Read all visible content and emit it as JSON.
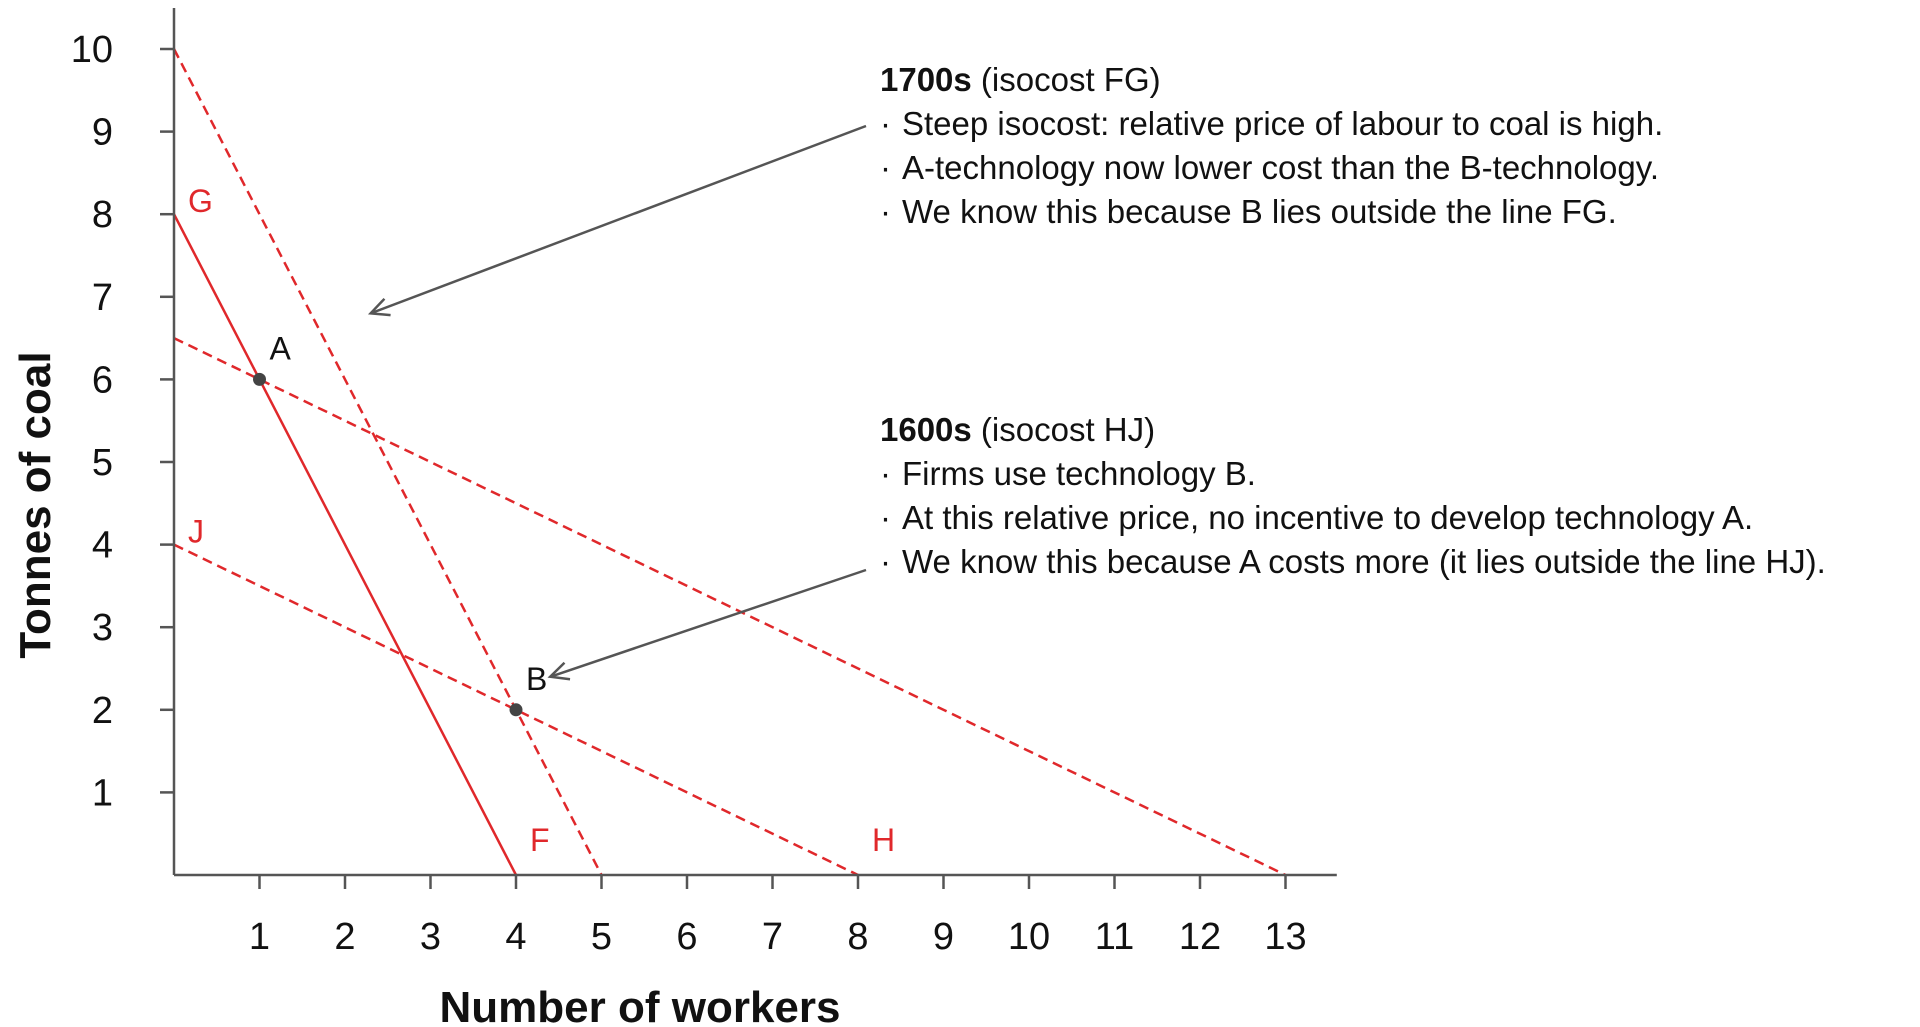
{
  "chart_data": {
    "type": "line",
    "xlabel": "Number of workers",
    "ylabel": "Tonnes of coal",
    "xlim": [
      0,
      13.6
    ],
    "ylim": [
      0,
      10.5
    ],
    "x_ticks": [
      1,
      2,
      3,
      4,
      5,
      6,
      7,
      8,
      9,
      10,
      11,
      12,
      13
    ],
    "y_ticks": [
      1,
      2,
      3,
      4,
      5,
      6,
      7,
      8,
      9,
      10
    ],
    "grid": false,
    "series": [
      {
        "name": "FG",
        "style": "solid",
        "color": "#e0282b",
        "points": [
          [
            0,
            8
          ],
          [
            4,
            0
          ]
        ],
        "end_labels": [
          "G",
          "F"
        ]
      },
      {
        "name": "",
        "style": "dashed",
        "color": "#e0282b",
        "points": [
          [
            0,
            10
          ],
          [
            5,
            0
          ]
        ]
      },
      {
        "name": "HJ",
        "style": "dashed",
        "color": "#e0282b",
        "points": [
          [
            0,
            4
          ],
          [
            8,
            0
          ]
        ],
        "end_labels": [
          "J",
          "H"
        ]
      },
      {
        "name": "",
        "style": "dashed",
        "color": "#e0282b",
        "points": [
          [
            0,
            6.5
          ],
          [
            13,
            0
          ]
        ]
      }
    ],
    "points": [
      {
        "label": "A",
        "x": 1,
        "y": 6
      },
      {
        "label": "B",
        "x": 4,
        "y": 2
      }
    ],
    "annotations": [
      {
        "heading_bold": "1700s",
        "heading_rest": " (isocost FG)",
        "bullets": [
          "Steep isocost: relative price of labour to coal is high.",
          "A-technology now lower cost than the B-technology.",
          "We know this because B lies outside the line FG."
        ]
      },
      {
        "heading_bold": "1600s",
        "heading_rest": " (isocost HJ)",
        "bullets": [
          "Firms use technology B.",
          "At this relative price, no incentive to develop technology A.",
          "We know this because A costs more (it lies outside the line HJ)."
        ]
      }
    ]
  },
  "colors": {
    "line": "#e0282b",
    "axis": "#555555",
    "point": "#444444",
    "arrow": "#555555",
    "text": "#111111"
  },
  "bullet_char": "·"
}
